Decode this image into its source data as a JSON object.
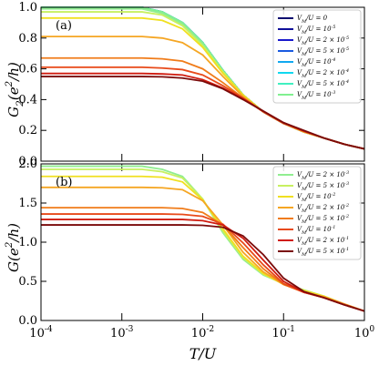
{
  "chart_data": [
    {
      "type": "line",
      "xlog": true,
      "panel_label": "(a)",
      "ylabel": "G_{2}(e^{2}/h)",
      "x": [
        0.0001,
        0.000178,
        0.000316,
        0.000562,
        0.001,
        0.00178,
        0.00316,
        0.00562,
        0.01,
        0.0178,
        0.0316,
        0.0562,
        0.1,
        0.178,
        0.316,
        0.562,
        1
      ],
      "xlim": [
        0.0001,
        1
      ],
      "ylim": [
        0,
        1.0
      ],
      "yticks": [
        {
          "value": 0,
          "label": "0.0"
        },
        {
          "value": 0.2,
          "label": "0.2"
        },
        {
          "value": 0.4,
          "label": "0.4"
        },
        {
          "value": 0.6,
          "label": "0.6"
        },
        {
          "value": 0.8,
          "label": "0.8"
        },
        {
          "value": 1,
          "label": "1.0"
        }
      ],
      "legend": "upper right",
      "series": [
        {
          "name": "V_{M}/U = 0",
          "color": "#0a0a6e",
          "values": [
            1.0,
            1.0,
            1.0,
            1.0,
            1.0,
            1.0,
            0.97,
            0.9,
            0.77,
            0.59,
            0.43,
            0.32,
            0.245,
            0.19,
            0.15,
            0.11,
            0.08
          ]
        },
        {
          "name": "V_{M}/U = 10^{-5}",
          "color": "#10109a",
          "values": [
            1.0,
            1.0,
            1.0,
            1.0,
            1.0,
            1.0,
            0.97,
            0.9,
            0.77,
            0.59,
            0.43,
            0.32,
            0.245,
            0.19,
            0.15,
            0.11,
            0.08
          ]
        },
        {
          "name": "V_{M}/U = 2 × 10^{-5}",
          "color": "#1a1acc",
          "values": [
            1.0,
            1.0,
            1.0,
            1.0,
            1.0,
            1.0,
            0.97,
            0.9,
            0.77,
            0.59,
            0.43,
            0.32,
            0.245,
            0.19,
            0.15,
            0.11,
            0.08
          ]
        },
        {
          "name": "V_{M}/U = 5 × 10^{-5}",
          "color": "#1a5ae0",
          "values": [
            1.0,
            1.0,
            1.0,
            1.0,
            1.0,
            1.0,
            0.97,
            0.9,
            0.77,
            0.59,
            0.43,
            0.32,
            0.245,
            0.19,
            0.15,
            0.11,
            0.08
          ]
        },
        {
          "name": "V_{M}/U = 10^{-4}",
          "color": "#10a8f0",
          "values": [
            1.0,
            1.0,
            1.0,
            1.0,
            1.0,
            1.0,
            0.97,
            0.9,
            0.77,
            0.59,
            0.43,
            0.32,
            0.245,
            0.19,
            0.15,
            0.11,
            0.08
          ]
        },
        {
          "name": "V_{M}/U = 2 × 10^{-4}",
          "color": "#10d8f0",
          "values": [
            1.0,
            1.0,
            1.0,
            1.0,
            1.0,
            1.0,
            0.97,
            0.9,
            0.77,
            0.59,
            0.43,
            0.32,
            0.245,
            0.19,
            0.15,
            0.11,
            0.08
          ]
        },
        {
          "name": "V_{M}/U = 5 × 10^{-4}",
          "color": "#40f0c0",
          "values": [
            1.0,
            1.0,
            1.0,
            1.0,
            1.0,
            1.0,
            0.97,
            0.9,
            0.77,
            0.59,
            0.43,
            0.32,
            0.245,
            0.19,
            0.15,
            0.11,
            0.08
          ]
        },
        {
          "name": "V_{M}/U = 10^{-3}",
          "color": "#80f090",
          "values": [
            1.0,
            1.0,
            1.0,
            1.0,
            1.0,
            1.0,
            0.97,
            0.9,
            0.77,
            0.59,
            0.43,
            0.32,
            0.245,
            0.19,
            0.15,
            0.11,
            0.08
          ]
        },
        {
          "color": "#90ee90",
          "values": [
            0.99,
            0.99,
            0.99,
            0.99,
            0.99,
            0.99,
            0.96,
            0.89,
            0.76,
            0.58,
            0.43,
            0.32,
            0.245,
            0.19,
            0.15,
            0.11,
            0.08
          ]
        },
        {
          "color": "#c8f060",
          "values": [
            0.97,
            0.97,
            0.97,
            0.97,
            0.97,
            0.97,
            0.95,
            0.88,
            0.75,
            0.58,
            0.43,
            0.32,
            0.245,
            0.19,
            0.15,
            0.11,
            0.08
          ]
        },
        {
          "color": "#f0e020",
          "values": [
            0.93,
            0.93,
            0.93,
            0.93,
            0.93,
            0.93,
            0.915,
            0.86,
            0.74,
            0.57,
            0.43,
            0.32,
            0.245,
            0.19,
            0.15,
            0.11,
            0.08
          ]
        },
        {
          "color": "#f5a623",
          "values": [
            0.81,
            0.81,
            0.81,
            0.81,
            0.81,
            0.81,
            0.8,
            0.77,
            0.69,
            0.55,
            0.42,
            0.32,
            0.245,
            0.19,
            0.15,
            0.11,
            0.08
          ]
        },
        {
          "color": "#f07c1a",
          "values": [
            0.67,
            0.67,
            0.67,
            0.67,
            0.67,
            0.67,
            0.665,
            0.65,
            0.6,
            0.51,
            0.41,
            0.32,
            0.245,
            0.195,
            0.15,
            0.11,
            0.08
          ]
        },
        {
          "color": "#e84a1a",
          "values": [
            0.61,
            0.61,
            0.61,
            0.61,
            0.61,
            0.61,
            0.605,
            0.595,
            0.56,
            0.49,
            0.41,
            0.32,
            0.245,
            0.195,
            0.15,
            0.11,
            0.08
          ]
        },
        {
          "color": "#d01c10",
          "values": [
            0.57,
            0.57,
            0.57,
            0.57,
            0.57,
            0.57,
            0.567,
            0.56,
            0.53,
            0.475,
            0.405,
            0.325,
            0.25,
            0.195,
            0.15,
            0.11,
            0.08
          ]
        },
        {
          "color": "#7a0a0a",
          "values": [
            0.55,
            0.55,
            0.55,
            0.55,
            0.55,
            0.55,
            0.548,
            0.54,
            0.52,
            0.47,
            0.4,
            0.325,
            0.25,
            0.2,
            0.15,
            0.11,
            0.08
          ]
        }
      ]
    },
    {
      "type": "line",
      "xlog": true,
      "panel_label": "(b)",
      "ylabel": "G(e^{2}/h)",
      "xlabel": "T/U",
      "x": [
        0.0001,
        0.000178,
        0.000316,
        0.000562,
        0.001,
        0.00178,
        0.00316,
        0.00562,
        0.01,
        0.0178,
        0.0316,
        0.0562,
        0.1,
        0.178,
        0.316,
        0.562,
        1
      ],
      "xlim": [
        0.0001,
        1
      ],
      "ylim": [
        0,
        2.0
      ],
      "xticks": [
        {
          "value": 0.0001,
          "label": "10^{-4}"
        },
        {
          "value": 0.001,
          "label": "10^{-3}"
        },
        {
          "value": 0.01,
          "label": "10^{-2}"
        },
        {
          "value": 0.1,
          "label": "10^{-1}"
        },
        {
          "value": 1,
          "label": "10^{0}"
        }
      ],
      "yticks": [
        {
          "value": 0,
          "label": "0.0"
        },
        {
          "value": 0.5,
          "label": "0.5"
        },
        {
          "value": 1,
          "label": "1.0"
        },
        {
          "value": 1.5,
          "label": "1.5"
        },
        {
          "value": 2,
          "label": "2.0"
        }
      ],
      "legend": "upper right",
      "series": [
        {
          "name": "V_{M}/U = 2 × 10^{-3}",
          "color": "#90ee90",
          "values": [
            1.97,
            1.97,
            1.97,
            1.97,
            1.97,
            1.97,
            1.93,
            1.84,
            1.55,
            1.12,
            0.78,
            0.58,
            0.47,
            0.39,
            0.31,
            0.21,
            0.12
          ]
        },
        {
          "name": "V_{M}/U = 5 × 10^{-3}",
          "color": "#c8f060",
          "values": [
            1.93,
            1.93,
            1.93,
            1.93,
            1.93,
            1.93,
            1.9,
            1.82,
            1.55,
            1.14,
            0.8,
            0.59,
            0.47,
            0.39,
            0.31,
            0.21,
            0.12
          ]
        },
        {
          "name": "V_{M}/U = 10^{-2}",
          "color": "#f0e020",
          "values": [
            1.84,
            1.84,
            1.84,
            1.84,
            1.84,
            1.84,
            1.83,
            1.77,
            1.54,
            1.17,
            0.82,
            0.6,
            0.46,
            0.38,
            0.31,
            0.21,
            0.12
          ]
        },
        {
          "name": "V_{M}/U = 2 × 10^{-2}",
          "color": "#f5a623",
          "values": [
            1.7,
            1.7,
            1.7,
            1.7,
            1.7,
            1.7,
            1.695,
            1.67,
            1.53,
            1.22,
            0.87,
            0.62,
            0.46,
            0.37,
            0.3,
            0.21,
            0.12
          ]
        },
        {
          "name": "V_{M}/U = 5 × 10^{-2}",
          "color": "#f07c1a",
          "values": [
            1.44,
            1.44,
            1.44,
            1.44,
            1.44,
            1.44,
            1.44,
            1.43,
            1.38,
            1.22,
            0.93,
            0.66,
            0.46,
            0.36,
            0.3,
            0.21,
            0.12
          ]
        },
        {
          "name": "V_{M}/U = 10^{-1}",
          "color": "#e84a1a",
          "values": [
            1.36,
            1.36,
            1.36,
            1.36,
            1.36,
            1.36,
            1.36,
            1.355,
            1.33,
            1.23,
            0.99,
            0.71,
            0.47,
            0.36,
            0.29,
            0.2,
            0.12
          ]
        },
        {
          "name": "V_{M}/U = 2 × 10^{-1}",
          "color": "#d01c10",
          "values": [
            1.29,
            1.29,
            1.29,
            1.29,
            1.29,
            1.29,
            1.29,
            1.29,
            1.275,
            1.22,
            1.05,
            0.77,
            0.5,
            0.36,
            0.29,
            0.2,
            0.12
          ]
        },
        {
          "name": "V_{M}/U = 5 × 10^{-1}",
          "color": "#7a0a0a",
          "values": [
            1.22,
            1.22,
            1.22,
            1.22,
            1.22,
            1.22,
            1.22,
            1.22,
            1.215,
            1.19,
            1.08,
            0.84,
            0.54,
            0.37,
            0.29,
            0.2,
            0.12
          ]
        }
      ]
    }
  ]
}
